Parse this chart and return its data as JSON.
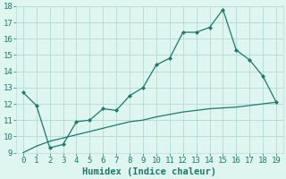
{
  "x": [
    0,
    1,
    2,
    3,
    4,
    5,
    6,
    7,
    8,
    9,
    10,
    11,
    12,
    13,
    14,
    15,
    16,
    17,
    18,
    19
  ],
  "y_main": [
    12.7,
    11.9,
    9.3,
    9.5,
    10.9,
    11.0,
    11.7,
    11.6,
    12.5,
    13.0,
    14.4,
    14.8,
    16.4,
    16.4,
    16.7,
    17.8,
    15.3,
    14.7,
    13.7,
    12.1
  ],
  "y_smooth": [
    9.0,
    9.4,
    9.7,
    9.9,
    10.1,
    10.3,
    10.5,
    10.7,
    10.9,
    11.0,
    11.2,
    11.35,
    11.5,
    11.6,
    11.7,
    11.75,
    11.8,
    11.9,
    12.0,
    12.1
  ],
  "line_color": "#1a7a6e",
  "bg_color": "#dff5f0",
  "grid_color": "#b8ddd8",
  "xlabel": "Humidex (Indice chaleur)",
  "ylim": [
    9,
    18
  ],
  "xlim": [
    -0.5,
    19.5
  ],
  "yticks": [
    9,
    10,
    11,
    12,
    13,
    14,
    15,
    16,
    17,
    18
  ],
  "xticks": [
    0,
    1,
    2,
    3,
    4,
    5,
    6,
    7,
    8,
    9,
    10,
    11,
    12,
    13,
    14,
    15,
    16,
    17,
    18,
    19
  ],
  "tick_fontsize": 6.5,
  "xlabel_fontsize": 7.5
}
